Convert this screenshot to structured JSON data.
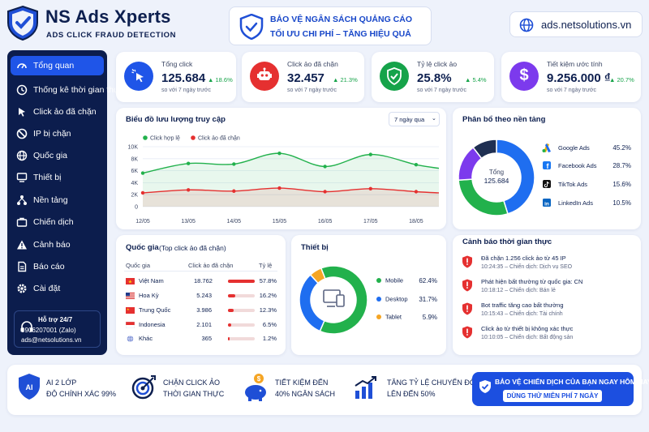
{
  "brand": {
    "name": "NS Ads Xperts",
    "tagline": "ADS CLICK FRAUD DETECTION"
  },
  "banner": {
    "line1": "BẢO VỆ NGÂN SÁCH QUẢNG CÁO",
    "line2": "TỐI ƯU CHI PHÍ – TĂNG HIỆU QUẢ"
  },
  "site": {
    "url": "ads.netsolutions.vn"
  },
  "sidebar": {
    "items": [
      {
        "label": "Tổng quan",
        "icon": "speedometer-icon"
      },
      {
        "label": "Thống kê thời gian thực",
        "icon": "clock-icon"
      },
      {
        "label": "Click ảo đã chặn",
        "icon": "cursor-icon"
      },
      {
        "label": "IP bị chặn",
        "icon": "block-icon"
      },
      {
        "label": "Quốc gia",
        "icon": "globe-icon"
      },
      {
        "label": "Thiết bị",
        "icon": "monitor-icon"
      },
      {
        "label": "Nền tảng",
        "icon": "network-icon"
      },
      {
        "label": "Chiến dịch",
        "icon": "briefcase-icon"
      },
      {
        "label": "Cảnh báo",
        "icon": "warning-icon"
      },
      {
        "label": "Báo cáo",
        "icon": "report-icon"
      },
      {
        "label": "Cài đặt",
        "icon": "gear-icon"
      }
    ],
    "support": {
      "title": "Hỗ trợ 24/7",
      "phone": "0906207001 (Zalo)",
      "email": "ads@netsolutions.vn"
    }
  },
  "stats": [
    {
      "label": "Tổng click",
      "value": "125.684",
      "delta": "▲ 18.6%",
      "compare": "so với 7 ngày trước",
      "color": "#1f55e8",
      "icon": "cursor-click-icon"
    },
    {
      "label": "Click ảo đã chặn",
      "value": "32.457",
      "delta": "▲ 21.3%",
      "compare": "so với 7 ngày trước",
      "color": "#e53030",
      "icon": "robot-icon"
    },
    {
      "label": "Tỷ lệ click ảo",
      "value": "25.8%",
      "delta": "▲ 5.4%",
      "compare": "so với 7 ngày trước",
      "color": "#16a34a",
      "icon": "shield-check-icon"
    },
    {
      "label": "Tiết kiệm ước tính",
      "value": "9.256.000 ₫",
      "delta": "▲ 20.7%",
      "compare": "so với 7 ngày trước",
      "color": "#7c3aed",
      "icon": "dollar-icon"
    }
  ],
  "traffic": {
    "title": "Biểu đồ lưu lượng truy cập",
    "range": "7 ngày qua",
    "legend": [
      "Click hợp lệ",
      "Click ảo đã chặn"
    ],
    "colors": [
      "#22b14c",
      "#e53030"
    ]
  },
  "chart_data": [
    {
      "type": "area",
      "title": "Biểu đồ lưu lượng truy cập",
      "categories": [
        "12/05",
        "13/05",
        "14/05",
        "15/05",
        "16/05",
        "17/05",
        "18/05"
      ],
      "ylim": [
        0,
        10000
      ],
      "yticks": [
        "0",
        "2K",
        "4K",
        "6K",
        "8K",
        "10K"
      ],
      "series": [
        {
          "name": "Click hợp lệ",
          "x": [
            12,
            13,
            14,
            15,
            16,
            17,
            18,
            18.5
          ],
          "values": [
            5600,
            7200,
            7100,
            8900,
            6700,
            8700,
            7000,
            6400
          ]
        },
        {
          "name": "Click ảo đã chặn",
          "x": [
            12,
            13,
            14,
            15,
            16,
            17,
            18,
            18.5
          ],
          "values": [
            2300,
            2800,
            2600,
            3100,
            2500,
            3000,
            2500,
            2300
          ]
        }
      ],
      "grid": true,
      "legend": "top-left"
    },
    {
      "type": "pie",
      "title": "Phân bổ theo nền tảng",
      "center_label": "Tổng",
      "center_value": "125.684",
      "categories": [
        "Google Ads",
        "Facebook Ads",
        "TikTok Ads",
        "LinkedIn Ads"
      ],
      "values": [
        45.2,
        28.7,
        15.6,
        10.5
      ],
      "labels": [
        "45.2%",
        "28.7%",
        "15.6%",
        "10.5%"
      ],
      "colors": [
        "#1f6ef0",
        "#22b14c",
        "#7c3aed",
        "#1f2f52"
      ],
      "icons": [
        "google-ads-icon",
        "facebook-icon",
        "tiktok-icon",
        "linkedin-icon"
      ]
    },
    {
      "type": "pie",
      "title": "Thiết bị",
      "categories": [
        "Mobile",
        "Desktop",
        "Tablet"
      ],
      "values": [
        62.4,
        31.7,
        5.9
      ],
      "labels": [
        "62.4%",
        "31.7%",
        "5.9%"
      ],
      "colors": [
        "#22b14c",
        "#1f6ef0",
        "#f5a524"
      ],
      "center_icon": "devices-icon"
    },
    {
      "type": "table",
      "title": "Quốc gia",
      "subtitle": "(Top click ảo đã chặn)",
      "headers": [
        "Quốc gia",
        "Click ảo đã chặn",
        "Tỷ lệ"
      ],
      "rows": [
        {
          "country": "Việt Nam",
          "flag": "vn-flag",
          "clicks": "18.762",
          "pct": 57.8,
          "pct_label": "57.8%"
        },
        {
          "country": "Hoa Kỳ",
          "flag": "us-flag",
          "clicks": "5.243",
          "pct": 16.2,
          "pct_label": "16.2%"
        },
        {
          "country": "Trung Quốc",
          "flag": "cn-flag",
          "clicks": "3.986",
          "pct": 12.3,
          "pct_label": "12.3%"
        },
        {
          "country": "Indonesia",
          "flag": "id-flag",
          "clicks": "2.101",
          "pct": 6.5,
          "pct_label": "6.5%"
        },
        {
          "country": "Khác",
          "flag": "globe-icon",
          "clicks": "365",
          "pct": 1.2,
          "pct_label": "1.2%"
        }
      ]
    }
  ],
  "alerts": {
    "title": "Cảnh báo thời gian thực",
    "items": [
      {
        "text": "Đã chặn 1.256 click ảo từ 45 IP",
        "meta": "10:24:35 – Chiến dịch: Dịch vụ SEO"
      },
      {
        "text": "Phát hiện bất thường từ quốc gia: CN",
        "meta": "10:18:12 – Chiến dịch: Bán lẻ"
      },
      {
        "text": "Bot traffic tăng cao bất thường",
        "meta": "10:15:43 – Chiến dịch: Tài chính"
      },
      {
        "text": "Click ảo từ thiết bị không xác thực",
        "meta": "10:10:05 – Chiến dịch: Bất động sản"
      }
    ]
  },
  "features": [
    {
      "line1": "AI 2 LỚP",
      "line2": "ĐỘ CHÍNH XÁC 99%",
      "icon": "shield-ai-icon"
    },
    {
      "line1": "CHẶN CLICK ẢO",
      "line2": "THỜI GIAN THỰC",
      "icon": "target-icon"
    },
    {
      "line1": "TIẾT KIỆM ĐẾN",
      "line2": "40% NGÂN SÁCH",
      "icon": "piggy-bank-icon"
    },
    {
      "line1": "TĂNG TỶ LỆ CHUYỂN ĐỔI",
      "line2": "LÊN ĐẾN 50%",
      "icon": "growth-chart-icon"
    }
  ],
  "cta": {
    "headline": "BẢO VỆ CHIẾN DỊCH CỦA BẠN NGAY HÔM NAY!",
    "button": "DÙNG THỬ MIỄN PHÍ 7 NGÀY"
  }
}
